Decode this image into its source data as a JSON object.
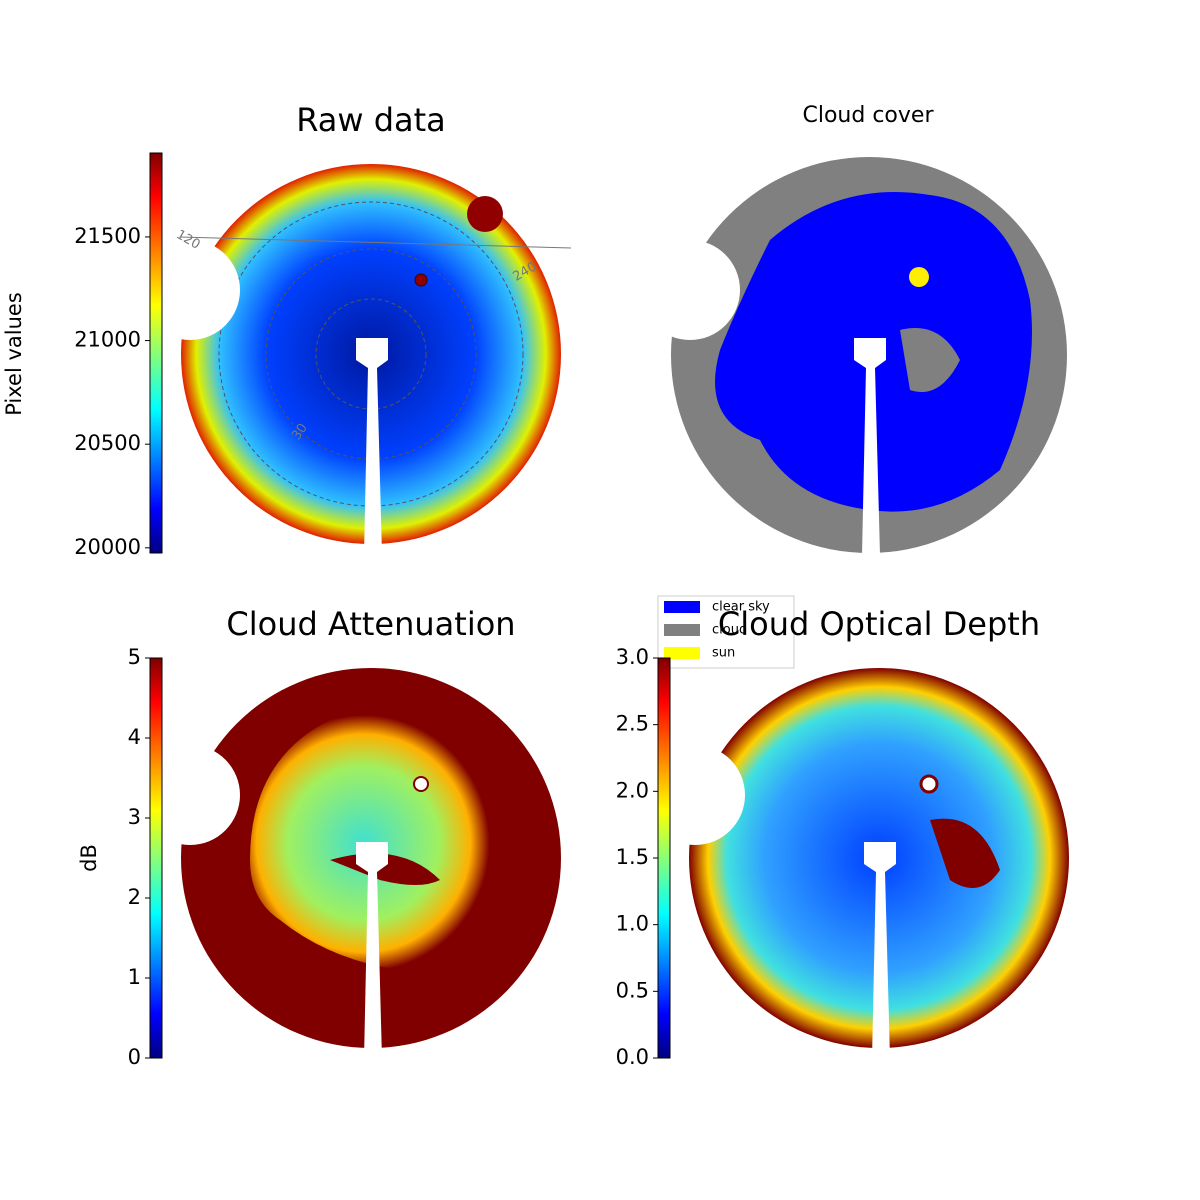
{
  "chart_data": [
    {
      "type": "image",
      "title": "Raw data",
      "colormap": "jet",
      "polar_labels": [
        "120",
        "240",
        "30"
      ],
      "colorbar": {
        "label": "Pixel values",
        "ylim": [
          19975,
          21905
        ],
        "yticks": [
          20000,
          20500,
          21000,
          21500
        ]
      }
    },
    {
      "type": "image",
      "title": "Cloud cover",
      "legend": {
        "series": [
          {
            "name": "clear sky",
            "color": "#0000ff"
          },
          {
            "name": "cloud",
            "color": "#808080"
          },
          {
            "name": "sun",
            "color": "#ffff00"
          }
        ]
      }
    },
    {
      "type": "image",
      "title": "Cloud Attenuation",
      "colormap": "jet",
      "colorbar": {
        "label": "dB",
        "ylim": [
          0,
          5
        ],
        "yticks": [
          0,
          1,
          2,
          3,
          4,
          5
        ]
      }
    },
    {
      "type": "image",
      "title": "Cloud Optical Depth",
      "colormap": "jet",
      "colorbar": {
        "ylim": [
          0,
          3
        ],
        "yticks": [
          {
            "value": 0,
            "label": "0.0"
          },
          {
            "value": 0.5,
            "label": "0.5"
          },
          {
            "value": 1,
            "label": "1.0"
          },
          {
            "value": 1.5,
            "label": "1.5"
          },
          {
            "value": 2,
            "label": "2.0"
          },
          {
            "value": 2.5,
            "label": "2.5"
          },
          {
            "value": 3,
            "label": "3.0"
          }
        ]
      }
    }
  ]
}
